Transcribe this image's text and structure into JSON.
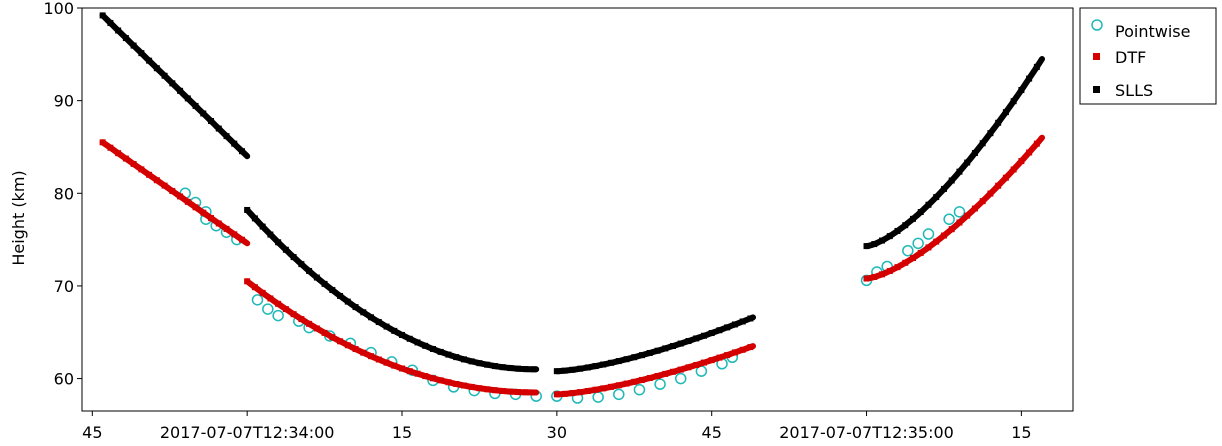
{
  "chart_data": {
    "type": "scatter",
    "title": "",
    "xlabel": "",
    "ylabel": "Height (km)",
    "xlim": [
      "2017-07-07T12:33:44",
      "2017-07-07T12:35:20"
    ],
    "ylim": [
      56.5,
      100
    ],
    "x_ticks": [
      {
        "t": "2017-07-07T12:33:45",
        "label": "45"
      },
      {
        "t": "2017-07-07T12:34:00",
        "label": "2017-07-07T12:34:00"
      },
      {
        "t": "2017-07-07T12:34:15",
        "label": "15"
      },
      {
        "t": "2017-07-07T12:34:30",
        "label": "30"
      },
      {
        "t": "2017-07-07T12:34:45",
        "label": "45"
      },
      {
        "t": "2017-07-07T12:35:00",
        "label": "2017-07-07T12:35:00"
      },
      {
        "t": "2017-07-07T12:35:15",
        "label": "15"
      }
    ],
    "y_ticks": [
      60,
      70,
      80,
      90,
      100
    ],
    "grid": false,
    "legend_position": "outside-top-right",
    "series": [
      {
        "name": "Pointwise",
        "marker": "open-circle",
        "color": "#1fb8b8",
        "points": [
          [
            "2017-07-07T12:33:54",
            80.0
          ],
          [
            "2017-07-07T12:33:55",
            79.0
          ],
          [
            "2017-07-07T12:33:56",
            78.0
          ],
          [
            "2017-07-07T12:33:56",
            77.2
          ],
          [
            "2017-07-07T12:33:57",
            76.5
          ],
          [
            "2017-07-07T12:33:58",
            75.8
          ],
          [
            "2017-07-07T12:33:59",
            75.0
          ],
          [
            "2017-07-07T12:34:01",
            68.5
          ],
          [
            "2017-07-07T12:34:02",
            67.5
          ],
          [
            "2017-07-07T12:34:03",
            66.8
          ],
          [
            "2017-07-07T12:34:05",
            66.2
          ],
          [
            "2017-07-07T12:34:06",
            65.5
          ],
          [
            "2017-07-07T12:34:08",
            64.6
          ],
          [
            "2017-07-07T12:34:10",
            63.8
          ],
          [
            "2017-07-07T12:34:12",
            62.8
          ],
          [
            "2017-07-07T12:34:14",
            61.8
          ],
          [
            "2017-07-07T12:34:16",
            60.9
          ],
          [
            "2017-07-07T12:34:18",
            59.8
          ],
          [
            "2017-07-07T12:34:20",
            59.1
          ],
          [
            "2017-07-07T12:34:22",
            58.7
          ],
          [
            "2017-07-07T12:34:24",
            58.4
          ],
          [
            "2017-07-07T12:34:26",
            58.3
          ],
          [
            "2017-07-07T12:34:28",
            58.1
          ],
          [
            "2017-07-07T12:34:30",
            58.1
          ],
          [
            "2017-07-07T12:34:32",
            57.9
          ],
          [
            "2017-07-07T12:34:34",
            58.0
          ],
          [
            "2017-07-07T12:34:36",
            58.3
          ],
          [
            "2017-07-07T12:34:38",
            58.8
          ],
          [
            "2017-07-07T12:34:40",
            59.4
          ],
          [
            "2017-07-07T12:34:42",
            60.0
          ],
          [
            "2017-07-07T12:34:44",
            60.8
          ],
          [
            "2017-07-07T12:34:46",
            61.6
          ],
          [
            "2017-07-07T12:34:47",
            62.3
          ],
          [
            "2017-07-07T12:35:00",
            70.6
          ],
          [
            "2017-07-07T12:35:01",
            71.5
          ],
          [
            "2017-07-07T12:35:02",
            72.1
          ],
          [
            "2017-07-07T12:35:04",
            73.8
          ],
          [
            "2017-07-07T12:35:05",
            74.6
          ],
          [
            "2017-07-07T12:35:06",
            75.6
          ],
          [
            "2017-07-07T12:35:08",
            77.2
          ],
          [
            "2017-07-07T12:35:09",
            78.0
          ]
        ]
      },
      {
        "name": "DTF",
        "marker": "filled-square",
        "color": "#d40000",
        "segments": [
          {
            "start": "2017-07-07T12:33:46",
            "end": "2017-07-07T12:34:00",
            "y_start": 85.5,
            "y_end": 74.6
          },
          {
            "start": "2017-07-07T12:34:00",
            "end": "2017-07-07T12:34:28",
            "y_start": 70.5,
            "y_end": 58.5,
            "curve": "concave-up",
            "y_min": 58.5
          },
          {
            "start": "2017-07-07T12:34:30",
            "end": "2017-07-07T12:34:49",
            "y_start": 58.3,
            "y_end": 63.5,
            "curve": "concave-up"
          },
          {
            "start": "2017-07-07T12:35:00",
            "end": "2017-07-07T12:35:17",
            "y_start": 70.8,
            "y_end": 86.0,
            "curve": "concave-up"
          }
        ]
      },
      {
        "name": "SLLS",
        "marker": "filled-square",
        "color": "#000000",
        "segments": [
          {
            "start": "2017-07-07T12:33:46",
            "end": "2017-07-07T12:34:00",
            "y_start": 99.2,
            "y_end": 84.0
          },
          {
            "start": "2017-07-07T12:34:00",
            "end": "2017-07-07T12:34:28",
            "y_start": 78.2,
            "y_end": 61.0,
            "curve": "concave-up",
            "y_min": 61.0
          },
          {
            "start": "2017-07-07T12:34:30",
            "end": "2017-07-07T12:34:49",
            "y_start": 60.8,
            "y_end": 66.6,
            "curve": "concave-up"
          },
          {
            "start": "2017-07-07T12:35:00",
            "end": "2017-07-07T12:35:17",
            "y_start": 74.3,
            "y_end": 94.5,
            "curve": "concave-up"
          }
        ]
      }
    ]
  }
}
